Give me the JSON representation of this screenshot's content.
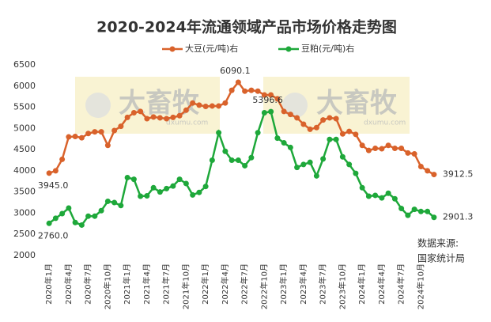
{
  "chart_data": {
    "type": "line",
    "title": "2020-2024年流通领域产品市场价格走势图",
    "source": [
      "数据来源:",
      "国家统计局"
    ],
    "watermark": [
      "大畜牧",
      "dxumu.com"
    ],
    "categories": [
      "2020年1月",
      null,
      null,
      "2020年4月",
      null,
      null,
      "2020年7月",
      null,
      null,
      "2020年10月",
      null,
      null,
      "2021年1月",
      null,
      null,
      "2021年4月",
      null,
      null,
      "2021年7月",
      null,
      null,
      "2021年10月",
      null,
      null,
      "2022年1月",
      null,
      null,
      "2022年4月",
      null,
      null,
      "2022年7月",
      null,
      null,
      "2022年10月",
      null,
      null,
      "2023年1月",
      null,
      null,
      "2023年4月",
      null,
      null,
      "2023年7月",
      null,
      null,
      "2023年10月",
      null,
      null,
      "2024年1月",
      null,
      null,
      "2024年4月",
      null,
      null,
      "2024年7月",
      null,
      null,
      "2024年10月",
      null,
      null
    ],
    "ylim": [
      2000,
      6500
    ],
    "yticks": [
      2000,
      2500,
      3000,
      3500,
      4000,
      4500,
      5000,
      5500,
      6000,
      6500
    ],
    "grid": false,
    "series": [
      {
        "name": "大豆(元/吨)右",
        "color": "#d9622b",
        "values": [
          3945.0,
          4000,
          4270,
          4800,
          4810,
          4780,
          4880,
          4920,
          4920,
          4600,
          4950,
          5050,
          5260,
          5370,
          5400,
          5230,
          5270,
          5250,
          5230,
          5260,
          5300,
          5430,
          5600,
          5550,
          5520,
          5530,
          5530,
          5600,
          5900,
          6090.1,
          5880,
          5900,
          5880,
          5790,
          5790,
          5700,
          5400,
          5330,
          5250,
          5100,
          4980,
          5020,
          5200,
          5250,
          5230,
          4870,
          4930,
          4860,
          4600,
          4480,
          4530,
          4520,
          4600,
          4530,
          4530,
          4420,
          4400,
          4100,
          4000,
          3912.5
        ],
        "value_labels": [
          "3945.0",
          null,
          null,
          null,
          null,
          null,
          null,
          null,
          null,
          null,
          null,
          null,
          null,
          null,
          null,
          null,
          null,
          null,
          null,
          null,
          null,
          null,
          null,
          null,
          null,
          null,
          null,
          null,
          null,
          "6090.1",
          null,
          null,
          null,
          null,
          null,
          null,
          null,
          null,
          null,
          null,
          null,
          null,
          null,
          null,
          null,
          null,
          null,
          null,
          null,
          null,
          null,
          null,
          null,
          null,
          null,
          null,
          null,
          null,
          null,
          "3912.5"
        ]
      },
      {
        "name": "豆粕(元/吨)右",
        "color": "#1ea83a",
        "values": [
          2760.0,
          2880,
          2990,
          3120,
          2780,
          2720,
          2930,
          2930,
          3060,
          3280,
          3250,
          3180,
          3840,
          3800,
          3400,
          3410,
          3600,
          3500,
          3580,
          3640,
          3800,
          3700,
          3430,
          3490,
          3630,
          4250,
          4900,
          4460,
          4250,
          4250,
          4120,
          4310,
          4900,
          5370,
          5396.6,
          4770,
          4660,
          4550,
          4080,
          4150,
          4200,
          3880,
          4280,
          4740,
          4740,
          4330,
          4150,
          3940,
          3600,
          3400,
          3420,
          3360,
          3470,
          3340,
          3110,
          2950,
          3090,
          3040,
          3040,
          2901.3
        ],
        "value_labels": [
          "2760.0",
          null,
          null,
          null,
          null,
          null,
          null,
          null,
          null,
          null,
          null,
          null,
          null,
          null,
          null,
          null,
          null,
          null,
          null,
          null,
          null,
          null,
          null,
          null,
          null,
          null,
          null,
          null,
          null,
          null,
          null,
          null,
          null,
          null,
          "5396.6",
          null,
          null,
          null,
          null,
          null,
          null,
          null,
          null,
          null,
          null,
          null,
          null,
          null,
          null,
          null,
          null,
          null,
          null,
          null,
          null,
          null,
          null,
          null,
          null,
          "2901.3"
        ]
      }
    ]
  }
}
